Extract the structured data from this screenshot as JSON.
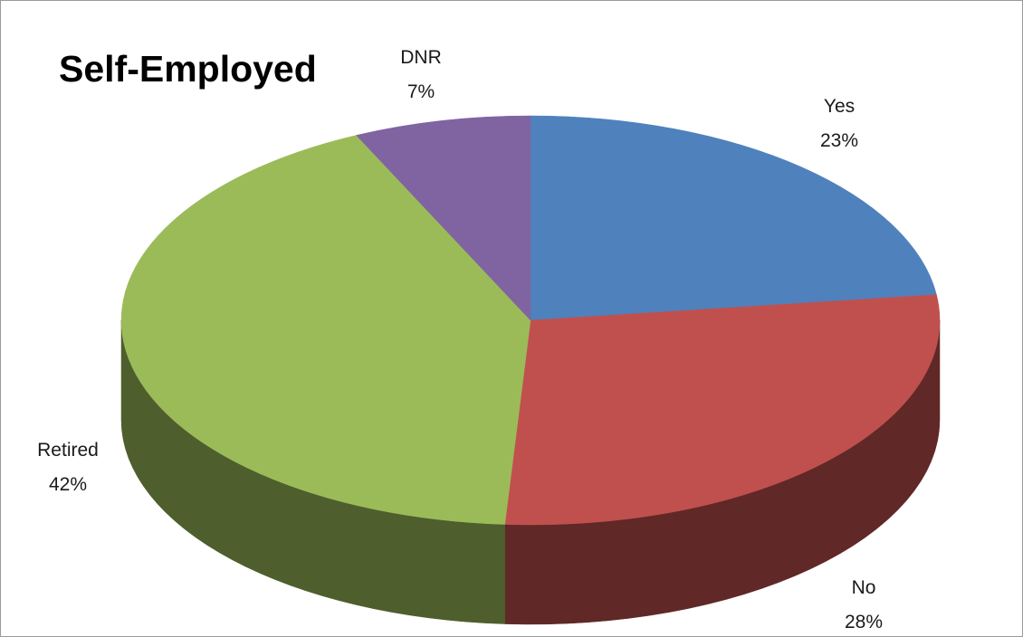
{
  "chart_data": {
    "type": "pie",
    "variant": "3d",
    "title": "Self-Employed",
    "series": [
      {
        "categories": [
          "Yes",
          "No",
          "Retired",
          "DNR"
        ],
        "values": [
          23,
          28,
          42,
          7
        ],
        "value_labels": [
          "23%",
          "28%",
          "42%",
          "7%"
        ]
      }
    ],
    "colors": [
      "#4F81BD",
      "#C0504D",
      "#9BBB59",
      "#8064A2"
    ],
    "legend": "none",
    "data_labels": "category and percentage"
  }
}
